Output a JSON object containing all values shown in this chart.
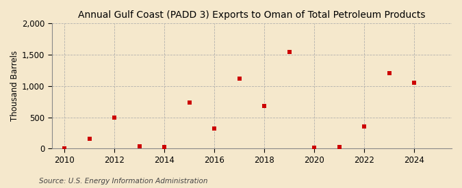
{
  "title": "Annual Gulf Coast (PADD 3) Exports to Oman of Total Petroleum Products",
  "ylabel": "Thousand Barrels",
  "source": "Source: U.S. Energy Information Administration",
  "years": [
    2010,
    2011,
    2012,
    2013,
    2014,
    2015,
    2016,
    2017,
    2018,
    2019,
    2020,
    2021,
    2022,
    2023,
    2024
  ],
  "values": [
    0,
    155,
    490,
    35,
    30,
    735,
    325,
    1120,
    685,
    1540,
    10,
    25,
    355,
    1210,
    1050
  ],
  "marker_color": "#cc0000",
  "marker_size": 4,
  "background_color": "#f5e8cc",
  "plot_background": "#f5e8cc",
  "grid_color": "#aaaaaa",
  "ylim": [
    0,
    2000
  ],
  "yticks": [
    0,
    500,
    1000,
    1500,
    2000
  ],
  "xlim": [
    2009.5,
    2025.5
  ],
  "xticks": [
    2010,
    2012,
    2014,
    2016,
    2018,
    2020,
    2022,
    2024
  ],
  "title_fontsize": 10,
  "axis_fontsize": 8.5,
  "source_fontsize": 7.5
}
